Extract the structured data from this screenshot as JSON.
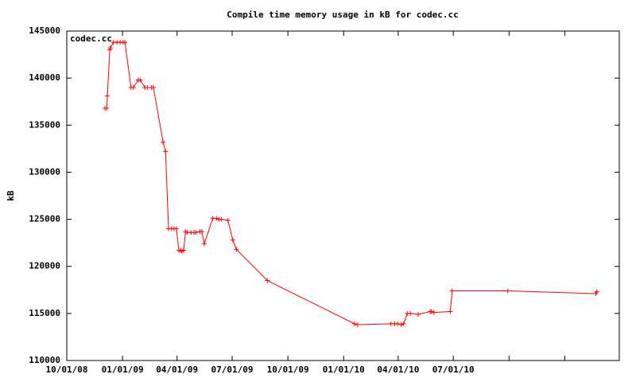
{
  "chart_data": {
    "type": "line",
    "title": "Compile time memory usage in kB for codec.cc",
    "y_label": "kB",
    "x": [
      "2008-12-03",
      "2008-12-06",
      "2008-12-07",
      "2008-12-11",
      "2008-12-12",
      "2008-12-17",
      "2008-12-23",
      "2008-12-28",
      "2009-01-02",
      "2009-01-05",
      "2009-01-15",
      "2009-01-19",
      "2009-01-27",
      "2009-01-30",
      "2009-02-07",
      "2009-02-11",
      "2009-02-18",
      "2009-02-21",
      "2009-03-09",
      "2009-03-13",
      "2009-03-18",
      "2009-03-23",
      "2009-03-27",
      "2009-03-31",
      "2009-04-04",
      "2009-04-07",
      "2009-04-09",
      "2009-04-12",
      "2009-04-15",
      "2009-04-18",
      "2009-04-24",
      "2009-04-29",
      "2009-05-02",
      "2009-05-09",
      "2009-05-12",
      "2009-05-16",
      "2009-05-30",
      "2009-06-05",
      "2009-06-09",
      "2009-06-13",
      "2009-06-24",
      "2009-07-02",
      "2009-07-08",
      "2009-08-28",
      "2010-01-19",
      "2010-01-24",
      "2010-03-20",
      "2010-03-26",
      "2010-03-31",
      "2010-04-06",
      "2010-04-10",
      "2010-04-16",
      "2010-04-21",
      "2010-05-04",
      "2010-05-24",
      "2010-05-26",
      "2010-05-30",
      "2010-06-26",
      "2010-06-29",
      "2010-09-29",
      "2011-02-21",
      "2011-02-23"
    ],
    "series": [
      {
        "name": "codec.cc",
        "color": "#ff0000",
        "values": [
          136800,
          136800,
          138100,
          143000,
          143200,
          143800,
          143800,
          143800,
          143800,
          143800,
          139000,
          139000,
          139800,
          139800,
          139000,
          139000,
          139000,
          139000,
          133200,
          132200,
          124000,
          124000,
          124000,
          124000,
          121700,
          121700,
          121600,
          121700,
          123700,
          123600,
          123600,
          123600,
          123600,
          123700,
          123700,
          122400,
          125100,
          125100,
          125000,
          125000,
          124900,
          122800,
          121800,
          118500,
          113900,
          113800,
          113900,
          113900,
          113900,
          113800,
          113900,
          115000,
          115000,
          114900,
          115200,
          115200,
          115100,
          115200,
          117400,
          117400,
          117100,
          117300
        ]
      }
    ],
    "xlim": [
      "2008-10-01",
      "2011-04-01"
    ],
    "xticks": [
      {
        "value": "2008-10-01",
        "label": "10/01/08"
      },
      {
        "value": "2009-01-01",
        "label": "01/01/09"
      },
      {
        "value": "2009-04-01",
        "label": "04/01/09"
      },
      {
        "value": "2009-07-01",
        "label": "07/01/09"
      },
      {
        "value": "2009-10-01",
        "label": "10/01/09"
      },
      {
        "value": "2010-01-01",
        "label": "01/01/10"
      },
      {
        "value": "2010-04-01",
        "label": "04/01/10"
      },
      {
        "value": "2010-07-01",
        "label": "07/01/10"
      },
      {
        "value": "2010-10-01",
        "label": null
      },
      {
        "value": "2011-01-01",
        "label": null
      },
      {
        "value": "2011-04-01",
        "label": null
      }
    ],
    "ylim": [
      110000,
      145000
    ],
    "yticks": [
      110000,
      115000,
      120000,
      125000,
      130000,
      135000,
      140000,
      145000
    ],
    "legend": "top-left"
  }
}
